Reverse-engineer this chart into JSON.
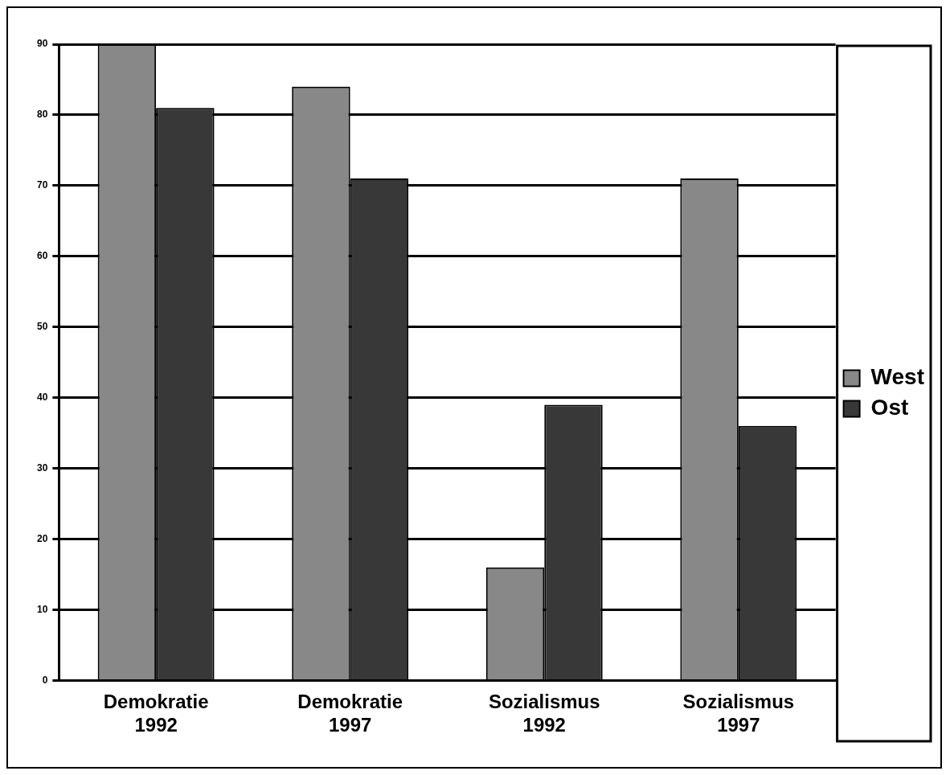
{
  "chart_data": {
    "type": "bar",
    "categories": [
      "Demokratie 1992",
      "Demokratie 1997",
      "Sozialismus 1992",
      "Sozialismus 1997"
    ],
    "series": [
      {
        "name": "West",
        "color": "#888888",
        "values": [
          90,
          84,
          16,
          71
        ]
      },
      {
        "name": "Ost",
        "color": "#383838",
        "values": [
          81,
          71,
          39,
          36
        ]
      }
    ],
    "ylim": [
      0,
      90
    ],
    "yticks": [
      0,
      10,
      20,
      30,
      40,
      50,
      60,
      70,
      80,
      90
    ],
    "grid": "y",
    "legend": "right"
  }
}
